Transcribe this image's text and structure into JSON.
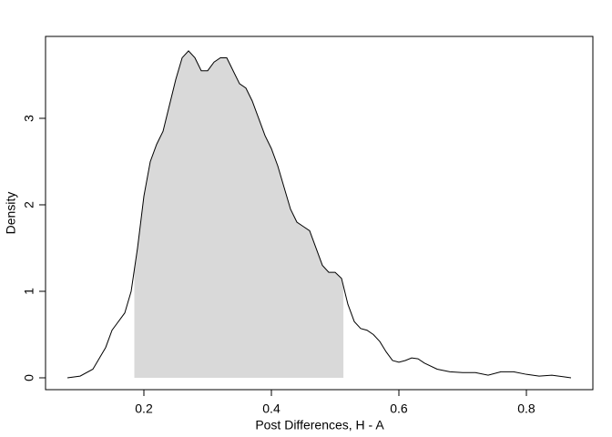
{
  "chart_data": {
    "type": "density",
    "x_label": "Post Differences, H - A",
    "y_label": "Density",
    "x": [
      0.08,
      0.1,
      0.12,
      0.14,
      0.15,
      0.17,
      0.18,
      0.19,
      0.2,
      0.21,
      0.22,
      0.23,
      0.24,
      0.25,
      0.26,
      0.27,
      0.28,
      0.29,
      0.3,
      0.31,
      0.32,
      0.33,
      0.34,
      0.35,
      0.36,
      0.37,
      0.38,
      0.39,
      0.4,
      0.41,
      0.42,
      0.43,
      0.44,
      0.45,
      0.46,
      0.47,
      0.48,
      0.49,
      0.5,
      0.51,
      0.52,
      0.53,
      0.54,
      0.55,
      0.56,
      0.57,
      0.58,
      0.59,
      0.6,
      0.61,
      0.62,
      0.63,
      0.64,
      0.66,
      0.68,
      0.7,
      0.72,
      0.74,
      0.76,
      0.78,
      0.8,
      0.82,
      0.84,
      0.86,
      0.87
    ],
    "y": [
      0,
      0.02,
      0.1,
      0.35,
      0.55,
      0.75,
      1.0,
      1.5,
      2.1,
      2.5,
      2.7,
      2.85,
      3.15,
      3.45,
      3.7,
      3.78,
      3.7,
      3.55,
      3.55,
      3.65,
      3.7,
      3.7,
      3.55,
      3.4,
      3.35,
      3.2,
      3.0,
      2.8,
      2.65,
      2.45,
      2.2,
      1.95,
      1.8,
      1.75,
      1.7,
      1.5,
      1.3,
      1.22,
      1.22,
      1.15,
      0.85,
      0.65,
      0.57,
      0.55,
      0.5,
      0.42,
      0.3,
      0.2,
      0.18,
      0.2,
      0.23,
      0.22,
      0.17,
      0.1,
      0.07,
      0.06,
      0.06,
      0.03,
      0.07,
      0.07,
      0.04,
      0.02,
      0.03,
      0.01,
      0.0
    ],
    "color": "#000000",
    "shade": [
      0.185,
      0.513
    ],
    "shade_color": "#d9d9d9",
    "xlim": [
      0.0457,
      0.9043
    ],
    "ylim": [
      -0.137,
      3.947
    ],
    "xticks": [
      0.2,
      0.4,
      0.6,
      0.8
    ],
    "yticks": [
      0,
      1,
      2,
      3
    ]
  }
}
